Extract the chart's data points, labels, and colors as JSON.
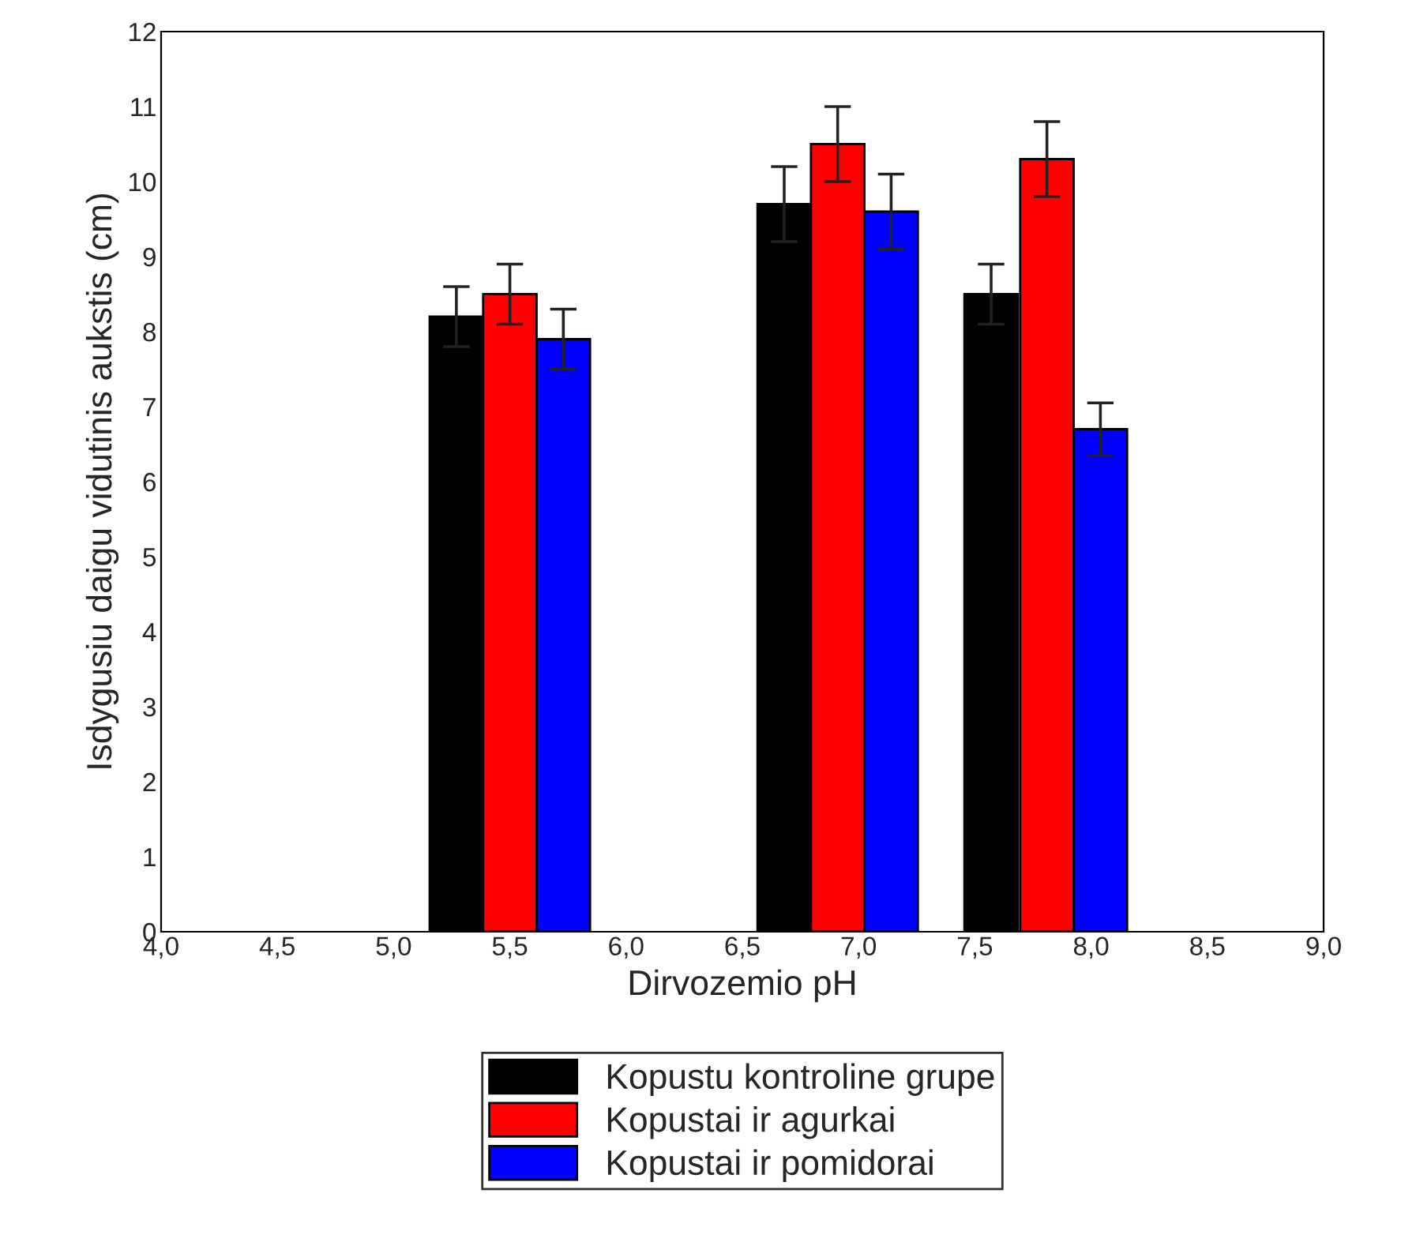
{
  "chart_data": {
    "type": "bar",
    "xlabel": "Dirvozemio pH",
    "ylabel": "Isdygusiu daigu vidutinis aukstis (cm)",
    "xlim": [
      4,
      9
    ],
    "xticks": [
      {
        "value": 4,
        "label": "4,0"
      },
      {
        "value": 4.5,
        "label": "4,5"
      },
      {
        "value": 5,
        "label": "5,0"
      },
      {
        "value": 5.5,
        "label": "5,5"
      },
      {
        "value": 6,
        "label": "6,0"
      },
      {
        "value": 6.5,
        "label": "6,5"
      },
      {
        "value": 7,
        "label": "7,0"
      },
      {
        "value": 7.5,
        "label": "7,5"
      },
      {
        "value": 8,
        "label": "8,0"
      },
      {
        "value": 8.5,
        "label": "8,5"
      },
      {
        "value": 9,
        "label": "9,0"
      }
    ],
    "ylim": [
      0,
      12
    ],
    "yticks": [
      0,
      1,
      2,
      3,
      4,
      5,
      6,
      7,
      8,
      9,
      10,
      11,
      12
    ],
    "series": [
      {
        "name": "Kopustu kontroline grupe",
        "color": "#000000",
        "x": [
          5.27,
          6.68,
          7.57
        ],
        "values": [
          8.2,
          9.7,
          8.5
        ],
        "errors": [
          0.4,
          0.5,
          0.4
        ]
      },
      {
        "name": "Kopustai ir agurkai",
        "color": "#ff0000",
        "x": [
          5.5,
          6.91,
          7.81
        ],
        "values": [
          8.5,
          10.5,
          10.3
        ],
        "errors": [
          0.4,
          0.5,
          0.5
        ]
      },
      {
        "name": "Kopustai ir pomidorai",
        "color": "#0000ff",
        "x": [
          5.73,
          7.14,
          8.04
        ],
        "values": [
          7.9,
          9.6,
          6.7
        ],
        "errors": [
          0.4,
          0.5,
          0.35
        ]
      }
    ],
    "grid": false,
    "legend": "bottom"
  }
}
